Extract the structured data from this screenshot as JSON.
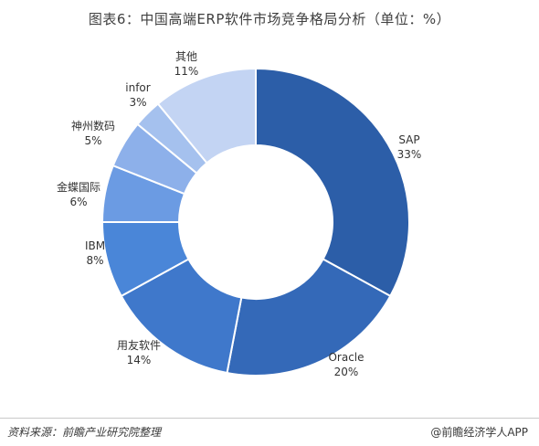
{
  "title": "图表6：中国高端ERP软件市场竞争格局分析（单位：%）",
  "footer": {
    "source": "资料来源：前瞻产业研究院整理",
    "brand": "@前瞻经济学人APP"
  },
  "chart_data": {
    "type": "pie",
    "donut": true,
    "title": "图表6：中国高端ERP软件市场竞争格局分析（单位：%）",
    "unit": "%",
    "slices": [
      {
        "name": "SAP",
        "value": 33,
        "label": "33%",
        "color": "#2c5ea8"
      },
      {
        "name": "Oracle",
        "value": 20,
        "label": "20%",
        "color": "#3469b8"
      },
      {
        "name": "用友软件",
        "value": 14,
        "label": "14%",
        "color": "#3f78cb"
      },
      {
        "name": "IBM",
        "value": 8,
        "label": "8%",
        "color": "#4a86d8"
      },
      {
        "name": "金蝶国际",
        "value": 6,
        "label": "6%",
        "color": "#6b9be3"
      },
      {
        "name": "神州数码",
        "value": 5,
        "label": "5%",
        "color": "#8db0ea"
      },
      {
        "name": "infor",
        "value": 3,
        "label": "3%",
        "color": "#a5c1ee"
      },
      {
        "name": "其他",
        "value": 11,
        "label": "11%",
        "color": "#c3d4f3"
      }
    ]
  }
}
